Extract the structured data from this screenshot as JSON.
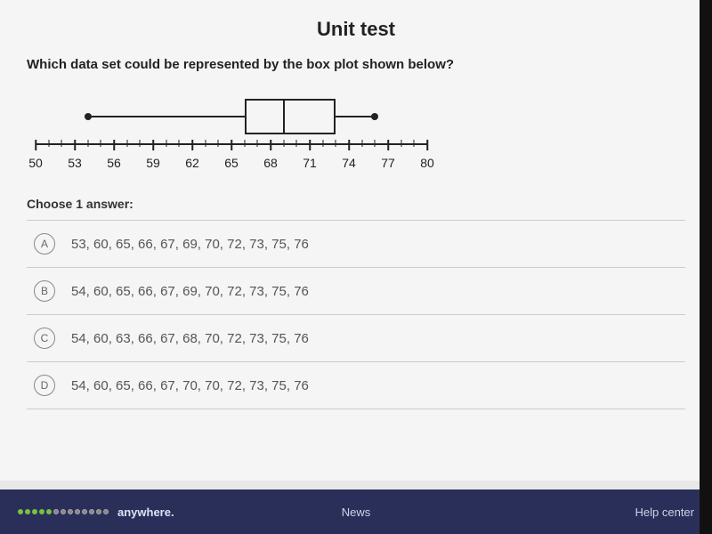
{
  "header": "Unit test",
  "question": "Which data set could be represented by the box plot shown below?",
  "boxplot": {
    "min": 54,
    "q1": 66,
    "median": 69,
    "q3": 73,
    "max": 76,
    "axis": {
      "start": 50,
      "end": 80,
      "major_step": 3,
      "labels": [
        "50",
        "53",
        "56",
        "59",
        "62",
        "65",
        "68",
        "71",
        "74",
        "77",
        "80"
      ]
    },
    "colors": {
      "stroke": "#222222",
      "bg": "#f5f5f5"
    }
  },
  "choose_label": "Choose 1 answer:",
  "options": [
    {
      "letter": "A",
      "text": "53, 60, 65, 66, 67, 69, 70, 72, 73, 75, 76"
    },
    {
      "letter": "B",
      "text": "54, 60, 65, 66, 67, 69, 70, 72, 73, 75, 76"
    },
    {
      "letter": "C",
      "text": "54, 60, 63, 66, 67, 68, 70, 72, 73, 75, 76"
    },
    {
      "letter": "D",
      "text": "54, 60, 65, 66, 67, 70, 70, 72, 73, 75, 76"
    }
  ],
  "footer": {
    "left_word": "anywhere.",
    "center": "News",
    "right": "Help center",
    "dots_green": 5,
    "dots_grey": 8
  }
}
